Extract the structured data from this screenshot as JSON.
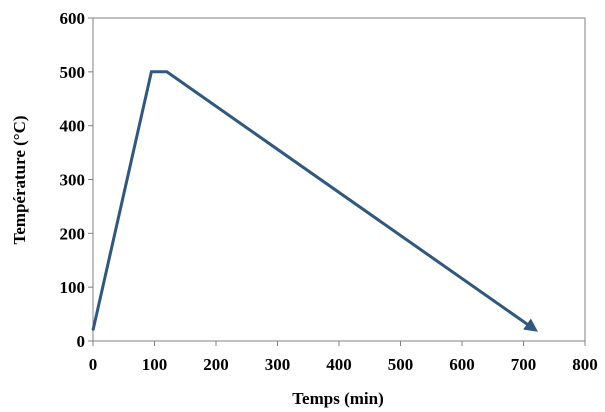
{
  "chart_data": {
    "type": "line",
    "title": "",
    "xlabel": "Temps (min)",
    "ylabel": "Température (°C)",
    "xlim": [
      0,
      800
    ],
    "ylim": [
      0,
      600
    ],
    "xticks": [
      0,
      100,
      200,
      300,
      400,
      500,
      600,
      700,
      800
    ],
    "yticks": [
      0,
      100,
      200,
      300,
      400,
      500,
      600
    ],
    "grid": false,
    "legend": "none",
    "end_marker": "arrow",
    "series": [
      {
        "color": "#2e5880",
        "x": [
          0,
          95,
          120,
          720
        ],
        "y": [
          20,
          500,
          500,
          20
        ]
      }
    ]
  }
}
